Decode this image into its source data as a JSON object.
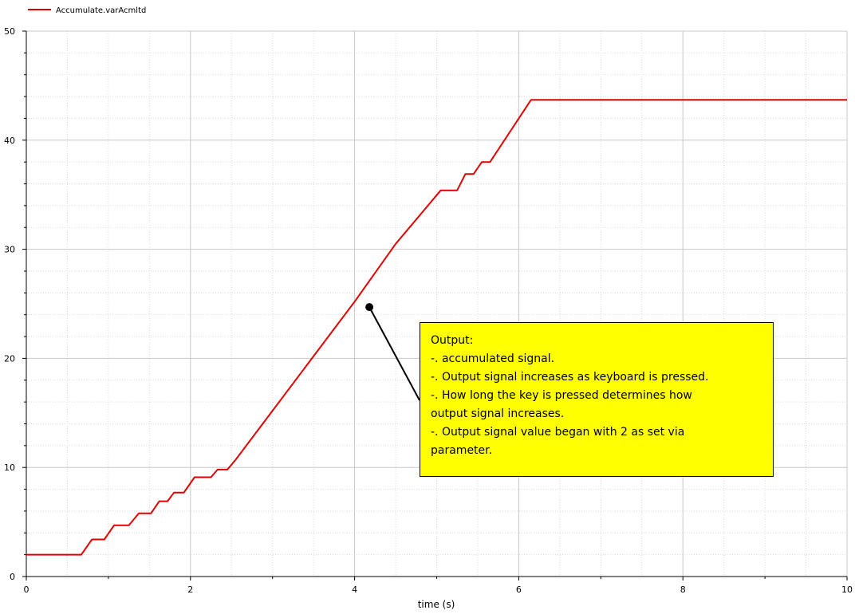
{
  "chart_data": {
    "type": "line",
    "xlabel": "time (s)",
    "ylabel": "",
    "xlim": [
      0,
      10
    ],
    "ylim": [
      0,
      50
    ],
    "x_ticks": [
      "0",
      "2",
      "4",
      "6",
      "8",
      "10"
    ],
    "y_ticks": [
      "0",
      "10",
      "20",
      "30",
      "40",
      "50"
    ],
    "grid": true,
    "legend_position": "top-left",
    "series": [
      {
        "name": "Accumulate.varAcmltd",
        "color": "#e00000",
        "points": [
          [
            0.0,
            2.0
          ],
          [
            0.67,
            2.0
          ],
          [
            0.8,
            3.4
          ],
          [
            0.95,
            3.4
          ],
          [
            1.07,
            4.7
          ],
          [
            1.25,
            4.7
          ],
          [
            1.37,
            5.8
          ],
          [
            1.52,
            5.8
          ],
          [
            1.62,
            6.9
          ],
          [
            1.72,
            6.9
          ],
          [
            1.8,
            7.7
          ],
          [
            1.92,
            7.7
          ],
          [
            2.05,
            9.1
          ],
          [
            2.25,
            9.1
          ],
          [
            2.33,
            9.8
          ],
          [
            2.45,
            9.8
          ],
          [
            2.55,
            10.7
          ],
          [
            4.0,
            25.2
          ],
          [
            4.5,
            30.5
          ],
          [
            5.05,
            35.4
          ],
          [
            5.25,
            35.4
          ],
          [
            5.35,
            36.9
          ],
          [
            5.45,
            36.9
          ],
          [
            5.55,
            38.0
          ],
          [
            5.65,
            38.0
          ],
          [
            6.15,
            43.7
          ],
          [
            10.0,
            43.7
          ]
        ]
      }
    ],
    "annotation": {
      "marker": [
        4.18,
        24.7
      ],
      "lines": [
        "Output:",
        "-. accumulated signal.",
        "-. Output signal increases as keyboard is pressed.",
        "-. How long the key is pressed determines how",
        "output signal increases.",
        "-. Output signal value began with 2 as set via",
        "parameter."
      ],
      "box_color": "#ffff00"
    }
  }
}
